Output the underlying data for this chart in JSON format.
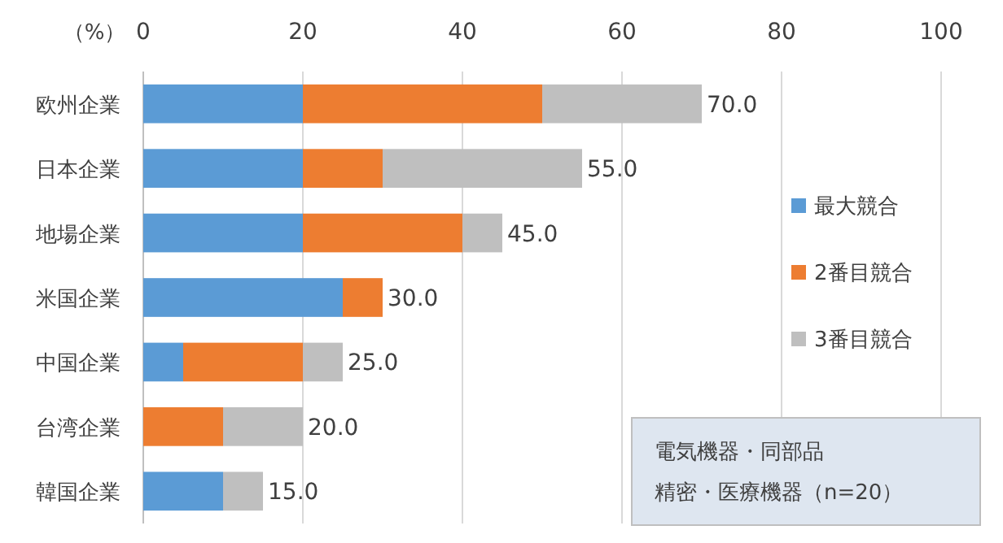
{
  "chart_data": {
    "type": "bar",
    "orientation": "horizontal",
    "stacked": true,
    "xlabel": "（%）",
    "categories": [
      "欧州企業",
      "日本企業",
      "地場企業",
      "米国企業",
      "中国企業",
      "台湾企業",
      "韓国企業"
    ],
    "series": [
      {
        "name": "最大競合",
        "color": "#5b9bd5",
        "values": [
          20,
          20,
          20,
          25,
          5,
          0,
          10
        ]
      },
      {
        "name": "2番目競合",
        "color": "#ed7d31",
        "values": [
          30,
          10,
          20,
          5,
          15,
          10,
          0
        ]
      },
      {
        "name": "3番目競合",
        "color": "#bfbfbf",
        "values": [
          20,
          25,
          5,
          0,
          5,
          10,
          5
        ]
      }
    ],
    "totals": [
      "70.0",
      "55.0",
      "45.0",
      "30.0",
      "25.0",
      "20.0",
      "15.0"
    ],
    "xlim": [
      0,
      100
    ],
    "xticks": [
      0,
      20,
      40,
      60,
      80,
      100
    ],
    "grid": "x",
    "legend": "right",
    "annotations": [
      "電気機器・同部品",
      "精密・医療機器（n=20）"
    ]
  }
}
